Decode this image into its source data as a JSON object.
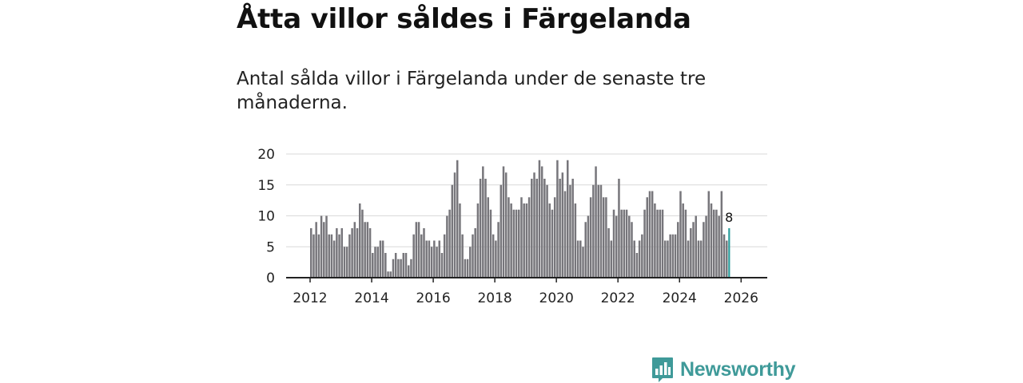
{
  "title": "Åtta villor såldes i Färgelanda",
  "subtitle": "Antal sålda villor i Färgelanda under de senaste tre månaderna.",
  "brand": {
    "name": "Newsworthy",
    "icon": "bar-chart-speech-icon",
    "color": "#3f9a99"
  },
  "colors": {
    "bar": "#77767b",
    "highlight": "#2a9d9c",
    "grid": "#d9d9d9",
    "axis": "#222222"
  },
  "chart_data": {
    "type": "bar",
    "title": "Åtta villor såldes i Färgelanda",
    "ylabel": "",
    "xlabel": "",
    "ylim": [
      0,
      20
    ],
    "yticks": [
      0,
      5,
      10,
      15,
      20
    ],
    "xticks": [
      "2012",
      "2014",
      "2016",
      "2018",
      "2020",
      "2022",
      "2024",
      "2026"
    ],
    "start": "2012-01",
    "last_label": "8",
    "values": [
      8,
      7,
      9,
      7,
      10,
      9,
      10,
      7,
      7,
      6,
      8,
      7,
      8,
      5,
      5,
      7,
      8,
      9,
      8,
      12,
      11,
      9,
      9,
      8,
      4,
      5,
      5,
      6,
      6,
      4,
      1,
      1,
      3,
      4,
      3,
      3,
      4,
      4,
      2,
      3,
      7,
      9,
      9,
      7,
      8,
      6,
      6,
      5,
      6,
      5,
      6,
      4,
      7,
      10,
      11,
      15,
      17,
      19,
      12,
      7,
      3,
      3,
      5,
      7,
      8,
      12,
      16,
      18,
      16,
      13,
      11,
      7,
      6,
      9,
      15,
      18,
      17,
      13,
      12,
      11,
      11,
      11,
      13,
      12,
      12,
      13,
      16,
      17,
      16,
      19,
      18,
      16,
      15,
      12,
      11,
      13,
      19,
      16,
      17,
      14,
      19,
      15,
      16,
      12,
      6,
      6,
      5,
      9,
      10,
      13,
      15,
      18,
      15,
      15,
      13,
      13,
      8,
      6,
      11,
      10,
      16,
      11,
      11,
      11,
      10,
      9,
      6,
      4,
      6,
      7,
      11,
      13,
      14,
      14,
      12,
      11,
      11,
      11,
      6,
      6,
      7,
      7,
      7,
      9,
      14,
      12,
      11,
      6,
      8,
      9,
      10,
      6,
      6,
      9,
      10,
      14,
      12,
      11,
      11,
      10,
      14,
      7,
      6,
      8
    ]
  }
}
